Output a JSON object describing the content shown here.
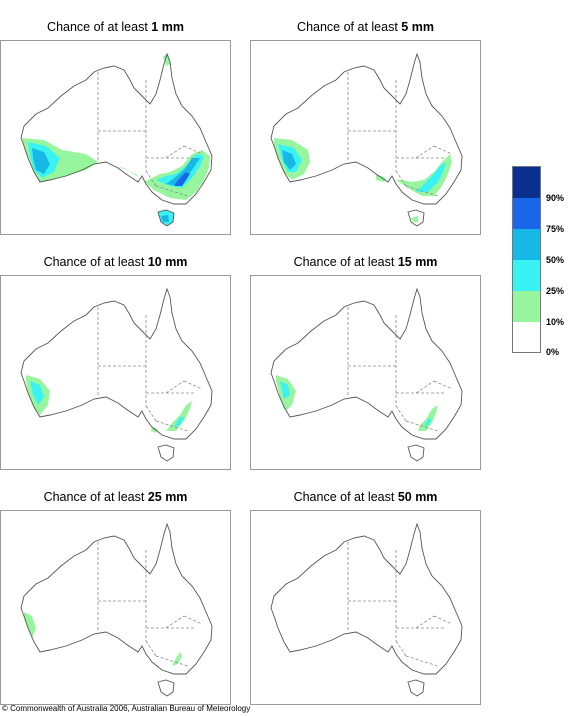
{
  "panels": [
    {
      "prefix": "Chance of at least ",
      "value": "1 mm"
    },
    {
      "prefix": "Chance of at least ",
      "value": "5 mm"
    },
    {
      "prefix": "Chance of at least ",
      "value": "10 mm"
    },
    {
      "prefix": "Chance of at least ",
      "value": "15 mm"
    },
    {
      "prefix": "Chance of at least ",
      "value": "25 mm"
    },
    {
      "prefix": "Chance of at least ",
      "value": "50 mm"
    }
  ],
  "legend": {
    "labels": [
      "90%",
      "75%",
      "50%",
      "25%",
      "10%",
      "0%"
    ],
    "colors": [
      "#0a2f8f",
      "#1a66e8",
      "#18b8e6",
      "#39f2f2",
      "#97f59e",
      "#ffffff"
    ]
  },
  "copyright": "© Commonwealth of Australia 2006, Australian Bureau of Meteorology"
}
